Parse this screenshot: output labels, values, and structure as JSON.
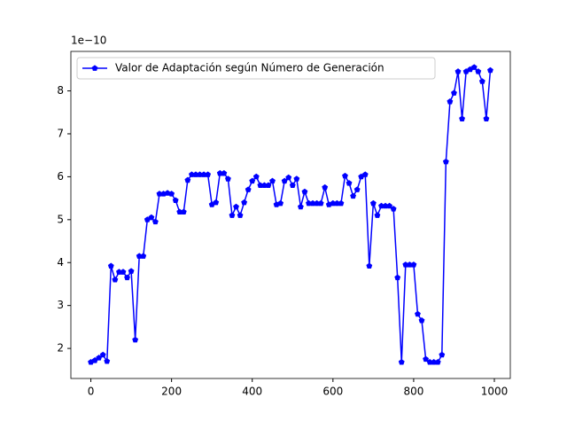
{
  "chart_data": {
    "type": "line",
    "y_offset_label": "1e−10",
    "x": [
      0,
      10,
      20,
      30,
      40,
      50,
      60,
      70,
      80,
      90,
      100,
      110,
      120,
      130,
      140,
      150,
      160,
      170,
      180,
      190,
      200,
      210,
      220,
      230,
      240,
      250,
      260,
      270,
      280,
      290,
      300,
      310,
      320,
      330,
      340,
      350,
      360,
      370,
      380,
      390,
      400,
      410,
      420,
      430,
      440,
      450,
      460,
      470,
      480,
      490,
      500,
      510,
      520,
      530,
      540,
      550,
      560,
      570,
      580,
      590,
      600,
      610,
      620,
      630,
      640,
      650,
      660,
      670,
      680,
      690,
      700,
      710,
      720,
      730,
      740,
      750,
      760,
      770,
      780,
      790,
      800,
      810,
      820,
      830,
      840,
      850,
      860,
      870,
      880,
      890,
      900,
      910,
      920,
      930,
      940,
      950,
      960,
      970,
      980,
      990
    ],
    "series": [
      {
        "name": "Valor de Adaptación según Número de Generación",
        "color": "#0000ff",
        "values": [
          1.68,
          1.72,
          1.78,
          1.85,
          1.7,
          3.92,
          3.6,
          3.78,
          3.78,
          3.65,
          3.8,
          2.2,
          4.15,
          4.15,
          5.0,
          5.05,
          4.95,
          5.6,
          5.6,
          5.62,
          5.6,
          5.45,
          5.18,
          5.18,
          5.92,
          6.05,
          6.05,
          6.05,
          6.05,
          6.05,
          5.35,
          5.4,
          6.08,
          6.08,
          5.95,
          5.1,
          5.3,
          5.1,
          5.4,
          5.7,
          5.9,
          6.0,
          5.8,
          5.8,
          5.8,
          5.9,
          5.35,
          5.38,
          5.9,
          5.98,
          5.8,
          5.95,
          5.3,
          5.65,
          5.38,
          5.38,
          5.38,
          5.38,
          5.75,
          5.35,
          5.38,
          5.38,
          5.38,
          6.02,
          5.85,
          5.55,
          5.7,
          6.0,
          6.05,
          3.92,
          5.38,
          5.1,
          5.32,
          5.32,
          5.32,
          5.25,
          3.65,
          1.68,
          3.95,
          3.95,
          3.95,
          2.8,
          2.65,
          1.75,
          1.68,
          1.68,
          1.68,
          1.85,
          6.35,
          7.75,
          7.95,
          8.45,
          7.35,
          8.45,
          8.5,
          8.55,
          8.45,
          8.22,
          7.35,
          8.48
        ]
      }
    ],
    "xlim": [
      -49.5,
      1039.5
    ],
    "ylim": [
      1.3,
      8.92
    ],
    "xticks": [
      0,
      200,
      400,
      600,
      800,
      1000
    ],
    "yticks": [
      2,
      3,
      4,
      5,
      6,
      7,
      8
    ],
    "legend": "upper left"
  }
}
